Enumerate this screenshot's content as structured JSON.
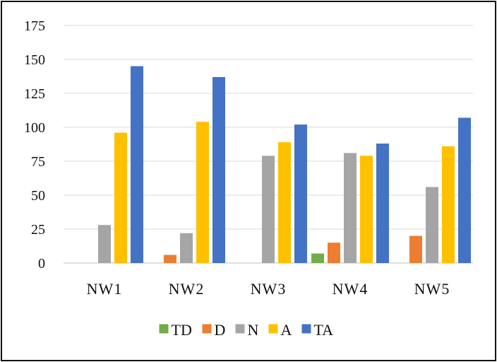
{
  "chart_data": {
    "type": "bar",
    "categories": [
      "NW1",
      "NW2",
      "NW3",
      "NW4",
      "NW5"
    ],
    "series": [
      {
        "name": "TD",
        "color": "#70ad47",
        "values": [
          0,
          0,
          0,
          7,
          0
        ]
      },
      {
        "name": "D",
        "color": "#ed7d31",
        "values": [
          0,
          6,
          0,
          15,
          20
        ]
      },
      {
        "name": "N",
        "color": "#a5a5a5",
        "values": [
          28,
          22,
          79,
          81,
          56
        ]
      },
      {
        "name": "A",
        "color": "#ffc000",
        "values": [
          96,
          104,
          89,
          79,
          86
        ]
      },
      {
        "name": "TA",
        "color": "#4472c4",
        "values": [
          145,
          137,
          102,
          88,
          107
        ]
      }
    ],
    "yticks": [
      "0",
      "25",
      "50",
      "75",
      "100",
      "125",
      "150",
      "175"
    ],
    "ylim": [
      0,
      175
    ],
    "grid": true,
    "legend": "bottom",
    "title": "",
    "xlabel": "",
    "ylabel": ""
  }
}
